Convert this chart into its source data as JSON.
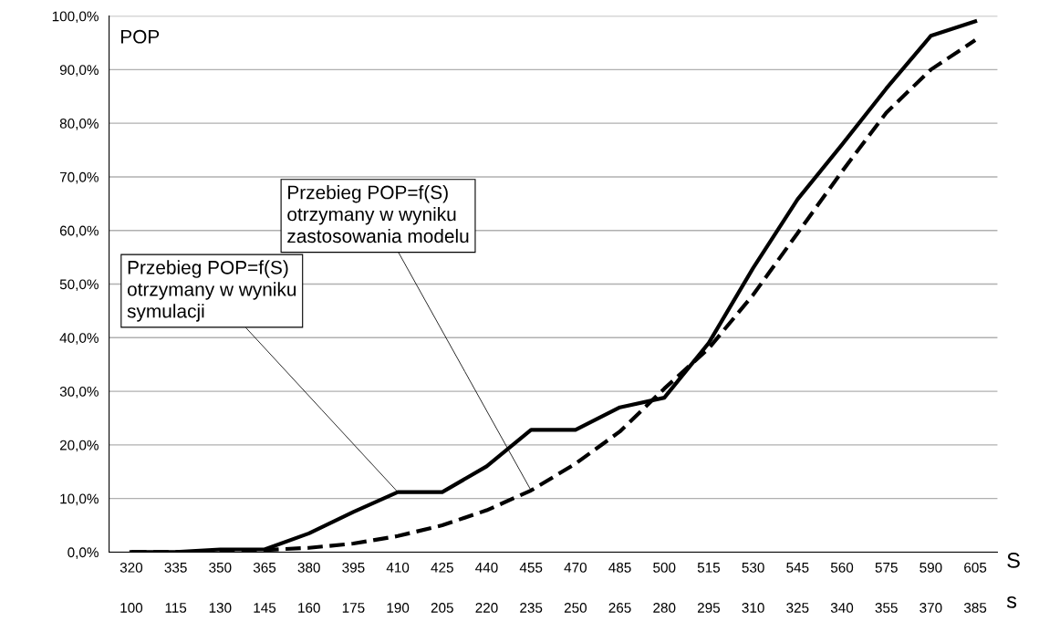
{
  "chart_data": {
    "type": "line",
    "x": [
      320,
      335,
      350,
      365,
      380,
      395,
      410,
      425,
      440,
      455,
      470,
      485,
      500,
      515,
      530,
      545,
      560,
      575,
      590,
      605
    ],
    "xlim": [
      312.5,
      612.5
    ],
    "xticks": [
      320,
      335,
      350,
      365,
      380,
      395,
      410,
      425,
      440,
      455,
      470,
      485,
      500,
      515,
      530,
      545,
      560,
      575,
      590,
      605
    ],
    "x2lim": [
      92.5,
      392.5
    ],
    "x2ticks": [
      100,
      115,
      130,
      145,
      160,
      175,
      190,
      205,
      220,
      235,
      250,
      265,
      280,
      295,
      310,
      325,
      340,
      355,
      370,
      385
    ],
    "xlabel": "S",
    "x2label": "s",
    "ylabel": "POP",
    "ylim": [
      0,
      100
    ],
    "yticks": [
      {
        "value": 0,
        "label": "0,0%"
      },
      {
        "value": 10,
        "label": "10,0%"
      },
      {
        "value": 20,
        "label": "20,0%"
      },
      {
        "value": 30,
        "label": "30,0%"
      },
      {
        "value": 40,
        "label": "40,0%"
      },
      {
        "value": 50,
        "label": "50,0%"
      },
      {
        "value": 60,
        "label": "60,0%"
      },
      {
        "value": 70,
        "label": "70,0%"
      },
      {
        "value": 80,
        "label": "80,0%"
      },
      {
        "value": 90,
        "label": "90,0%"
      },
      {
        "value": 100,
        "label": "100,0%"
      }
    ],
    "grid": "y",
    "series": [
      {
        "color": "#000000",
        "line_style": "solid",
        "values": [
          0,
          0,
          0.5,
          0.5,
          3.5,
          7.5,
          11.2,
          11.2,
          16,
          22.8,
          22.8,
          27,
          28.8,
          39,
          53,
          65.8,
          76,
          86.5,
          96.3,
          99
        ]
      },
      {
        "color": "#000000",
        "line_style": "dashed",
        "values": [
          0,
          0,
          0.2,
          0.4,
          0.8,
          1.6,
          3,
          5,
          7.8,
          11.5,
          16.5,
          22.5,
          30.5,
          38,
          48,
          59.5,
          71,
          82,
          90,
          95.5
        ]
      }
    ],
    "annotations": [
      {
        "text": "Przebieg POP=f(S)\notrzymany w wyniku\nsymulacji",
        "x": 410,
        "y": 11.2
      },
      {
        "text": "Przebieg POP=f(S)\notrzymany w wyniku\nzastosowania modelu",
        "x": 455,
        "y": 11.5
      }
    ]
  }
}
